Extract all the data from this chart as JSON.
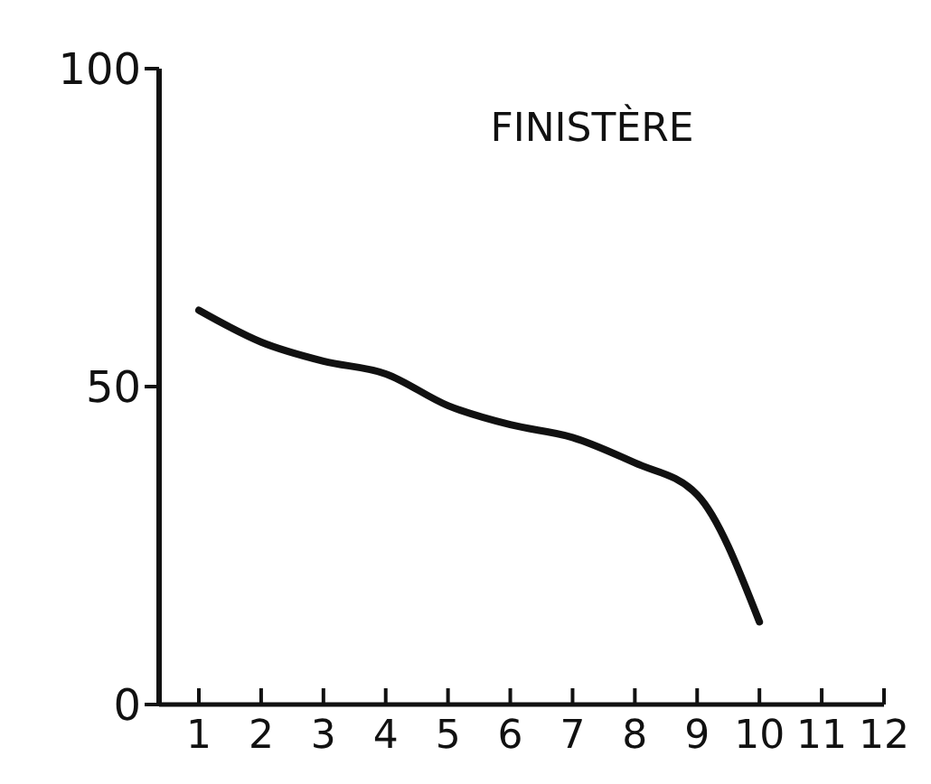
{
  "chart_data": {
    "type": "line",
    "title": "FINISTÈRE",
    "x": [
      1,
      2,
      3,
      4,
      5,
      6,
      7,
      8,
      9,
      10
    ],
    "values": [
      62,
      57,
      54,
      52,
      47,
      44,
      42,
      38,
      33,
      13
    ],
    "color": "#111111",
    "xlim": [
      1,
      12
    ],
    "xticks": [
      1,
      2,
      3,
      4,
      5,
      6,
      7,
      8,
      9,
      10,
      11,
      12
    ],
    "ylim": [
      0,
      100
    ],
    "yticks": [
      0,
      50,
      100
    ],
    "grid": false,
    "marker": "none"
  }
}
